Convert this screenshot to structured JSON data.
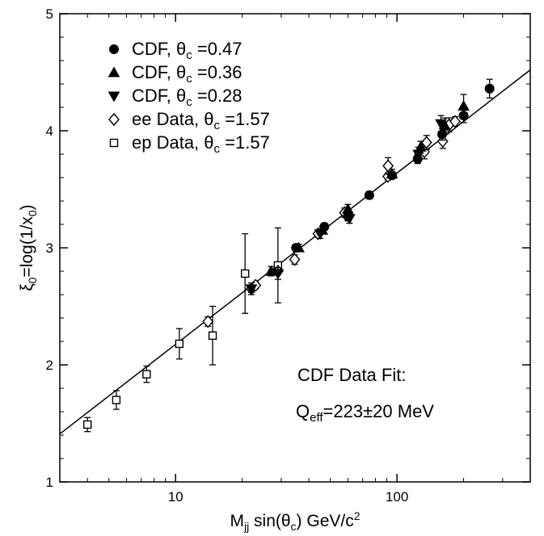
{
  "chart_data": {
    "type": "scatter",
    "x_scale": "log",
    "xlim": [
      3,
      400
    ],
    "ylim": [
      1,
      5
    ],
    "x_ticks": [
      {
        "value": 10,
        "label": "10"
      },
      {
        "value": 100,
        "label": "100"
      }
    ],
    "y_ticks": [
      {
        "value": 1,
        "label": "1"
      },
      {
        "value": 2,
        "label": "2"
      },
      {
        "value": 3,
        "label": "3"
      },
      {
        "value": 4,
        "label": "4"
      },
      {
        "value": 5,
        "label": "5"
      }
    ],
    "xlabel": {
      "main": "M",
      "sub": "jj",
      "rest": " sin(θ",
      "sub2": "c",
      "rest2": ") GeV/c",
      "sup": "2"
    },
    "ylabel": {
      "main": "ξ",
      "sub": "0",
      "rest": "=log(1/x",
      "sub2": "0",
      "rest2": ")"
    },
    "legend_position": "top-left",
    "series": [
      {
        "name": "CDF, θc =0.47",
        "label_main": "CDF, θ",
        "label_sub": "c",
        "label_rest": " =0.47",
        "marker": "circle",
        "filled": true,
        "points": [
          {
            "x": 35,
            "y": 3.0,
            "err": 0.03
          },
          {
            "x": 47,
            "y": 3.18,
            "err": 0.03
          },
          {
            "x": 60,
            "y": 3.27,
            "err": 0.04
          },
          {
            "x": 75,
            "y": 3.45,
            "err": 0.03
          },
          {
            "x": 95,
            "y": 3.62,
            "err": 0.03
          },
          {
            "x": 124,
            "y": 3.76,
            "err": 0.04
          },
          {
            "x": 160,
            "y": 3.97,
            "err": 0.05
          },
          {
            "x": 200,
            "y": 4.13,
            "err": 0.06
          },
          {
            "x": 262,
            "y": 4.36,
            "err": 0.08
          }
        ]
      },
      {
        "name": "CDF, θc =0.36",
        "label_main": "CDF, θ",
        "label_sub": "c",
        "label_rest": " =0.36",
        "marker": "triangle-up",
        "filled": true,
        "points": [
          {
            "x": 27,
            "y": 2.8,
            "err": 0.04
          },
          {
            "x": 36,
            "y": 3.0,
            "err": 0.03
          },
          {
            "x": 46,
            "y": 3.15,
            "err": 0.03
          },
          {
            "x": 60,
            "y": 3.33,
            "err": 0.04
          },
          {
            "x": 95,
            "y": 3.63,
            "err": 0.04
          },
          {
            "x": 128,
            "y": 3.86,
            "err": 0.05
          },
          {
            "x": 165,
            "y": 4.04,
            "err": 0.07
          },
          {
            "x": 200,
            "y": 4.21,
            "err": 0.1
          }
        ]
      },
      {
        "name": "CDF, θc =0.28",
        "label_main": "CDF, θ",
        "label_sub": "c",
        "label_rest": " =0.28",
        "marker": "triangle-down",
        "filled": true,
        "points": [
          {
            "x": 22,
            "y": 2.65,
            "err": 0.05
          },
          {
            "x": 29,
            "y": 2.78,
            "err": 0.05
          },
          {
            "x": 45,
            "y": 3.12,
            "err": 0.04
          },
          {
            "x": 61,
            "y": 3.25,
            "err": 0.04
          },
          {
            "x": 125,
            "y": 3.8,
            "err": 0.06
          },
          {
            "x": 158,
            "y": 4.06,
            "err": 0.07
          }
        ]
      },
      {
        "name": "ee Data, θc =1.57",
        "label_main": "ee Data, θ",
        "label_sub": "c",
        "label_rest": " =1.57",
        "marker": "diamond",
        "filled": false,
        "points": [
          {
            "x": 14.0,
            "y": 2.37,
            "err": 0.04
          },
          {
            "x": 22.0,
            "y": 2.65,
            "err": 0.03
          },
          {
            "x": 23.0,
            "y": 2.68,
            "err": 0.03
          },
          {
            "x": 29.0,
            "y": 2.8,
            "err": 0.03
          },
          {
            "x": 34.5,
            "y": 2.9,
            "err": 0.04
          },
          {
            "x": 44.0,
            "y": 3.12,
            "err": 0.03
          },
          {
            "x": 58.0,
            "y": 3.3,
            "err": 0.04
          },
          {
            "x": 91.0,
            "y": 3.61,
            "err": 0.03
          },
          {
            "x": 91.2,
            "y": 3.7,
            "err": 0.07
          },
          {
            "x": 133.0,
            "y": 3.82,
            "err": 0.06
          },
          {
            "x": 136.0,
            "y": 3.9,
            "err": 0.06
          },
          {
            "x": 161.0,
            "y": 3.91,
            "err": 0.06
          },
          {
            "x": 172.0,
            "y": 4.05,
            "err": 0.06
          },
          {
            "x": 183.0,
            "y": 4.08,
            "err": 0.04
          }
        ]
      },
      {
        "name": "ep Data, θc =1.57",
        "label_main": "ep Data, θ",
        "label_sub": "c",
        "label_rest": " =1.57",
        "marker": "square",
        "filled": false,
        "points": [
          {
            "x": 4.0,
            "y": 1.49,
            "err": 0.06
          },
          {
            "x": 5.4,
            "y": 1.7,
            "err": 0.08
          },
          {
            "x": 7.4,
            "y": 1.92,
            "err": 0.07
          },
          {
            "x": 10.4,
            "y": 2.18,
            "err": 0.13
          },
          {
            "x": 14.7,
            "y": 2.25,
            "err": 0.25
          },
          {
            "x": 20.6,
            "y": 2.78,
            "err": 0.34
          },
          {
            "x": 29.0,
            "y": 2.85,
            "err": 0.32
          }
        ]
      }
    ],
    "fit_line": {
      "x": [
        3,
        400
      ],
      "y": [
        1.41,
        4.52
      ]
    },
    "annotations": [
      {
        "text": "CDF Data Fit:"
      },
      {
        "main": "Q",
        "sub": "eff",
        "rest": "=223±20  MeV"
      }
    ]
  }
}
